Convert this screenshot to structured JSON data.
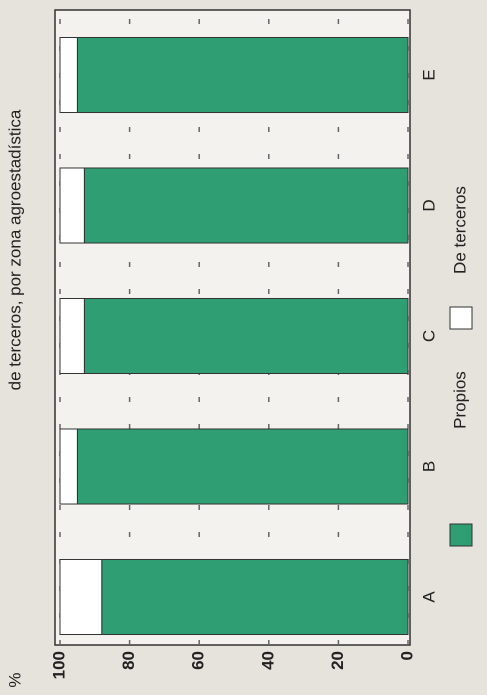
{
  "chart_data": {
    "type": "bar",
    "stacked": true,
    "title": "de terceros, por zona agroestadística",
    "ylabel": "%",
    "categories": [
      "A",
      "B",
      "C",
      "D",
      "E"
    ],
    "series": [
      {
        "name": "Propios",
        "color": "#2f9e72",
        "values": [
          88,
          95,
          93,
          93,
          95
        ]
      },
      {
        "name": "De terceros",
        "color": "#ffffff",
        "values": [
          12,
          5,
          7,
          7,
          5
        ]
      }
    ],
    "ylim": [
      0,
      100
    ],
    "yticks": [
      0,
      20,
      40,
      60,
      80,
      100
    ],
    "grid": true
  }
}
